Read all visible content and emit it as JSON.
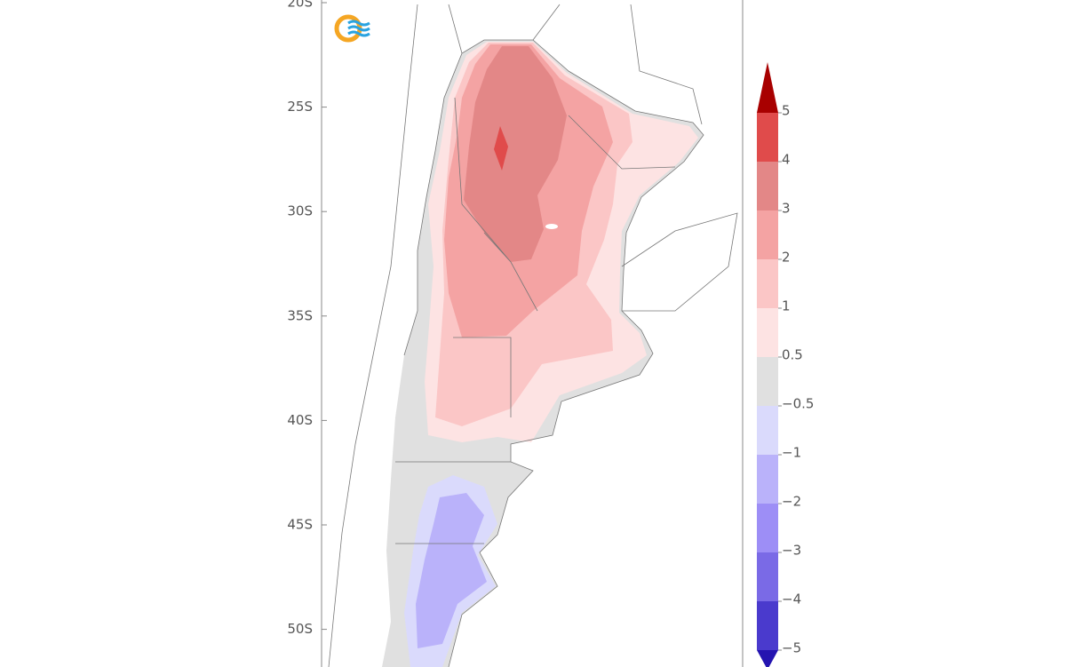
{
  "map": {
    "lat_labels": [
      "20S",
      "25S",
      "30S",
      "35S",
      "40S",
      "45S",
      "50S"
    ]
  },
  "colorbar": {
    "labels": [
      "5",
      "4",
      "3",
      "2",
      "1",
      "0.5",
      "−0.5",
      "−1",
      "−2",
      "−3",
      "−4",
      "−5"
    ],
    "colors": [
      "#a80000",
      "#e04b4b",
      "#e38787",
      "#f4a3a3",
      "#fbc6c6",
      "#fde3e3",
      "#e0e0e0",
      "#dadafc",
      "#bab2fa",
      "#9d8ef6",
      "#7a6ae6",
      "#4a3acd",
      "#2414b0"
    ]
  }
}
